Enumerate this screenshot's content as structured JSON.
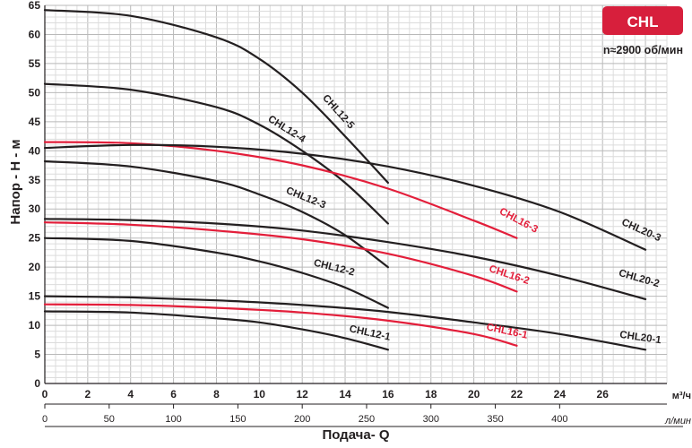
{
  "badge": {
    "text": "CHL",
    "color": "#d71f3c"
  },
  "speed_label": "n≈2900 об/мин",
  "chart_data": {
    "type": "line",
    "ylabel": "Напор - H - м",
    "xlabel": "Подача- Q",
    "x_unit_primary": "м³/ч",
    "x_unit_secondary": "л/мин",
    "xlim": [
      0,
      29
    ],
    "ylim": [
      0,
      65
    ],
    "x_ticks_primary": [
      0,
      2,
      4,
      6,
      8,
      10,
      12,
      14,
      16,
      18,
      20,
      22,
      24,
      26
    ],
    "x_ticks_secondary": [
      0,
      50,
      100,
      150,
      200,
      250,
      300,
      350,
      400
    ],
    "y_ticks": [
      0,
      5,
      10,
      15,
      20,
      25,
      30,
      35,
      40,
      45,
      50,
      55,
      60,
      65
    ],
    "grid": true,
    "series": [
      {
        "name": "CHL12-5",
        "color": "#231f20",
        "x": [
          0,
          4,
          8,
          10,
          12,
          14,
          16
        ],
        "y": [
          64.2,
          63.2,
          59.5,
          55.8,
          50.0,
          42.5,
          34.5
        ]
      },
      {
        "name": "CHL12-4",
        "color": "#231f20",
        "x": [
          0,
          4,
          8,
          10,
          12,
          14,
          16
        ],
        "y": [
          51.5,
          50.5,
          47.5,
          44.5,
          40.0,
          34.5,
          27.5
        ]
      },
      {
        "name": "CHL12-3",
        "color": "#231f20",
        "x": [
          0,
          4,
          8,
          10,
          12,
          14,
          16
        ],
        "y": [
          38.2,
          37.3,
          34.8,
          32.5,
          29.5,
          25.5,
          20.0
        ]
      },
      {
        "name": "CHL12-2",
        "color": "#231f20",
        "x": [
          0,
          4,
          8,
          10,
          12,
          14,
          16
        ],
        "y": [
          25.0,
          24.5,
          22.5,
          21.0,
          19.0,
          16.5,
          13.0
        ]
      },
      {
        "name": "CHL12-1",
        "color": "#231f20",
        "x": [
          0,
          4,
          8,
          10,
          12,
          14,
          16
        ],
        "y": [
          12.4,
          12.2,
          11.2,
          10.5,
          9.3,
          7.8,
          5.8
        ]
      },
      {
        "name": "CHL16-3",
        "color": "#e31e3a",
        "x": [
          0,
          4,
          8,
          12,
          16,
          20,
          22
        ],
        "y": [
          41.5,
          41.3,
          40.0,
          37.5,
          33.5,
          28.0,
          25.0
        ]
      },
      {
        "name": "CHL16-2",
        "color": "#e31e3a",
        "x": [
          0,
          4,
          8,
          12,
          16,
          20,
          22
        ],
        "y": [
          27.7,
          27.3,
          26.3,
          24.8,
          22.3,
          18.5,
          15.8
        ]
      },
      {
        "name": "CHL16-1",
        "color": "#e31e3a",
        "x": [
          0,
          4,
          8,
          12,
          16,
          20,
          22
        ],
        "y": [
          13.6,
          13.5,
          13.0,
          12.2,
          10.8,
          8.5,
          6.5
        ]
      },
      {
        "name": "CHL20-3",
        "color": "#231f20",
        "x": [
          0,
          4,
          8,
          12,
          16,
          20,
          24,
          28
        ],
        "y": [
          40.5,
          41.0,
          40.7,
          39.5,
          37.3,
          34.0,
          29.5,
          23.0
        ]
      },
      {
        "name": "CHL20-2",
        "color": "#231f20",
        "x": [
          0,
          4,
          8,
          12,
          16,
          20,
          24,
          28
        ],
        "y": [
          28.3,
          28.1,
          27.5,
          26.3,
          24.3,
          21.8,
          18.5,
          14.5
        ]
      },
      {
        "name": "CHL20-1",
        "color": "#231f20",
        "x": [
          0,
          4,
          8,
          12,
          16,
          20,
          24,
          28
        ],
        "y": [
          15.0,
          14.8,
          14.3,
          13.5,
          12.3,
          10.5,
          8.5,
          5.8
        ]
      }
    ]
  }
}
